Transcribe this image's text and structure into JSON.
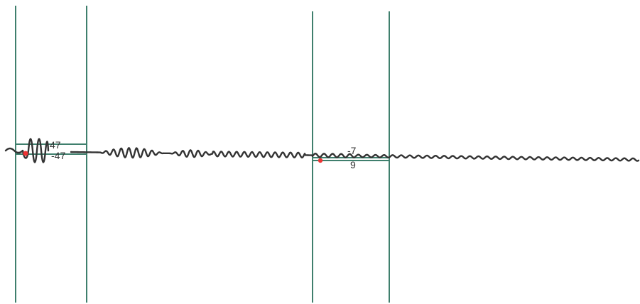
{
  "chart_data": {
    "type": "line",
    "title": "",
    "xlabel": "",
    "ylabel": "",
    "grid": false,
    "legend": "none",
    "series": [
      {
        "color": "#333333",
        "segments": [
          {
            "x": [
              0,
              2,
              4,
              6,
              8,
              10,
              12,
              14,
              16,
              18,
              20,
              22,
              24,
              26,
              28,
              30,
              32,
              34,
              36,
              38,
              40
            ],
            "y": [
              0,
              4,
              0,
              -6,
              0,
              10,
              0,
              -20,
              0,
              47,
              0,
              -47,
              0,
              47,
              0,
              -47,
              0,
              47,
              0,
              -47,
              0
            ]
          }
        ]
      }
    ],
    "markers": [
      {
        "label": "first-marker",
        "color": "#ee3333"
      },
      {
        "label": "second-marker",
        "color": "#ee3333"
      }
    ],
    "panels": [
      {
        "name": "left-panel",
        "ticks": [
          "47",
          "-47"
        ],
        "line_color": "#3f7f6d"
      },
      {
        "name": "right-panel",
        "ticks": [
          "-7",
          "9"
        ],
        "line_color": "#3f7f6d"
      }
    ]
  }
}
